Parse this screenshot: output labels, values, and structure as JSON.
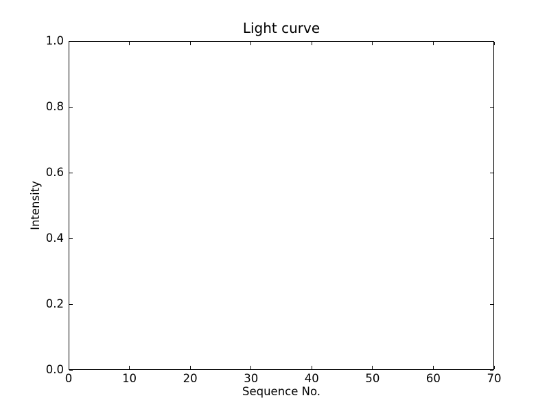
{
  "chart_data": {
    "type": "line",
    "title": "Light curve",
    "xlabel": "Sequence No.",
    "ylabel": "Intensity",
    "xlim": [
      0,
      70
    ],
    "ylim": [
      0.0,
      1.0
    ],
    "xticks": {
      "values": [
        0,
        10,
        20,
        30,
        40,
        50,
        60,
        70
      ],
      "labels": [
        "0",
        "10",
        "20",
        "30",
        "40",
        "50",
        "60",
        "70"
      ]
    },
    "yticks": {
      "values": [
        0.0,
        0.2,
        0.4,
        0.6,
        0.8,
        1.0
      ],
      "labels": [
        "0.0",
        "0.2",
        "0.4",
        "0.6",
        "0.8",
        "1.0"
      ]
    },
    "grid": false,
    "legend": null,
    "tick_direction": "in",
    "series": []
  },
  "colors": {
    "background": "#ffffff",
    "spines": "#000000",
    "text": "#000000"
  }
}
